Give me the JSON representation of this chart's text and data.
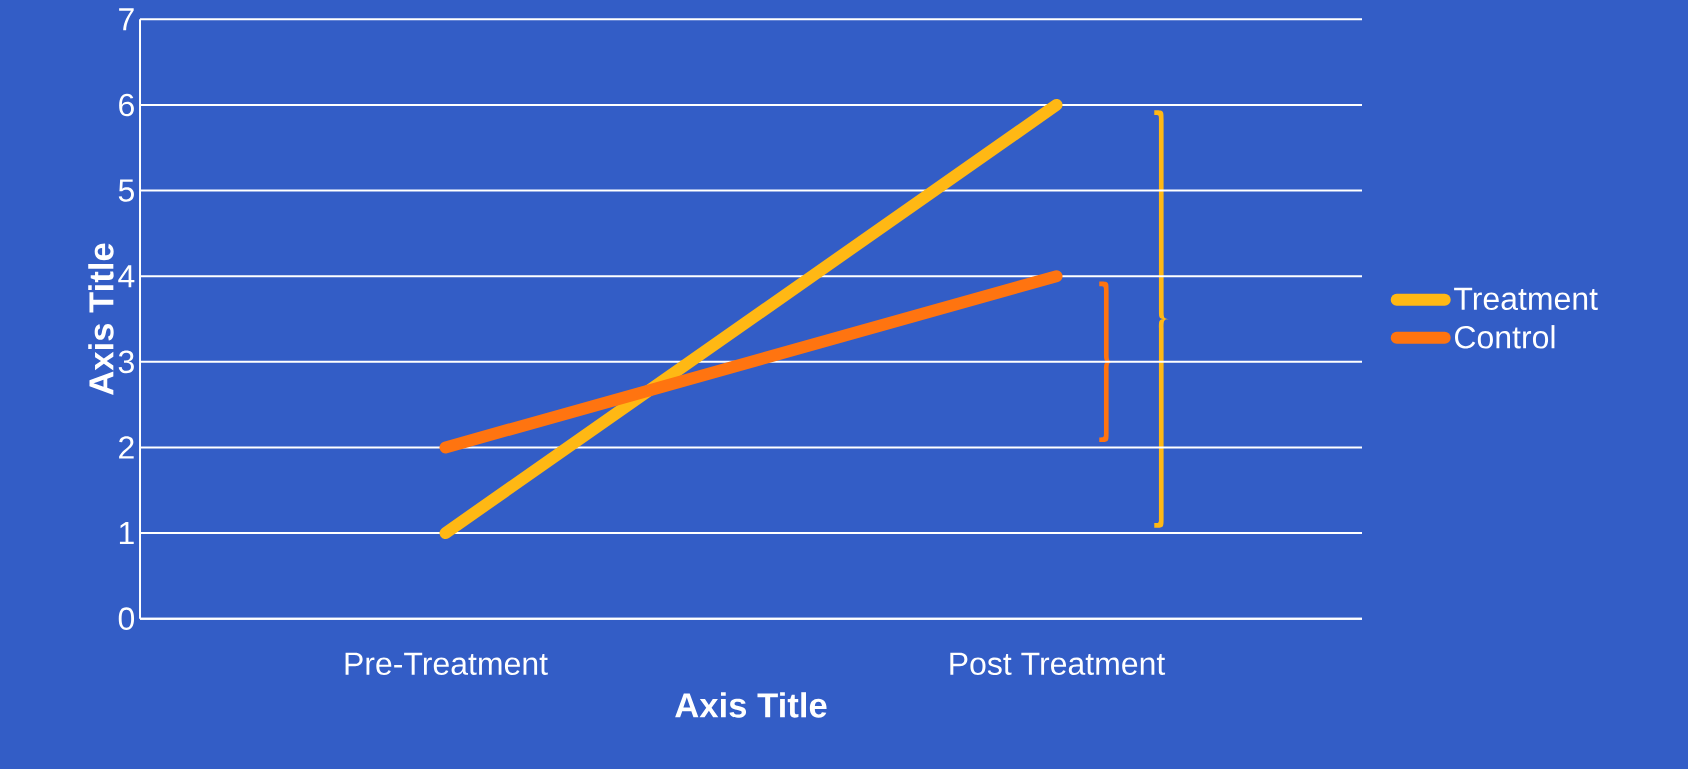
{
  "chart_data": {
    "type": "line",
    "xlabel": "Axis Title",
    "ylabel": "Axis Title",
    "categories": [
      "Pre-Treatment",
      "Post Treatment"
    ],
    "series": [
      {
        "name": "Treatment",
        "color": "#ffb814",
        "values": [
          1,
          6
        ]
      },
      {
        "name": "Control",
        "color": "#ff7410",
        "values": [
          2,
          4
        ]
      }
    ],
    "ylim": [
      0,
      7
    ],
    "yticks": [
      0,
      1,
      2,
      3,
      4,
      5,
      6,
      7
    ],
    "grid": "y",
    "legend": "right",
    "marker": "none",
    "line_style": "solid"
  }
}
